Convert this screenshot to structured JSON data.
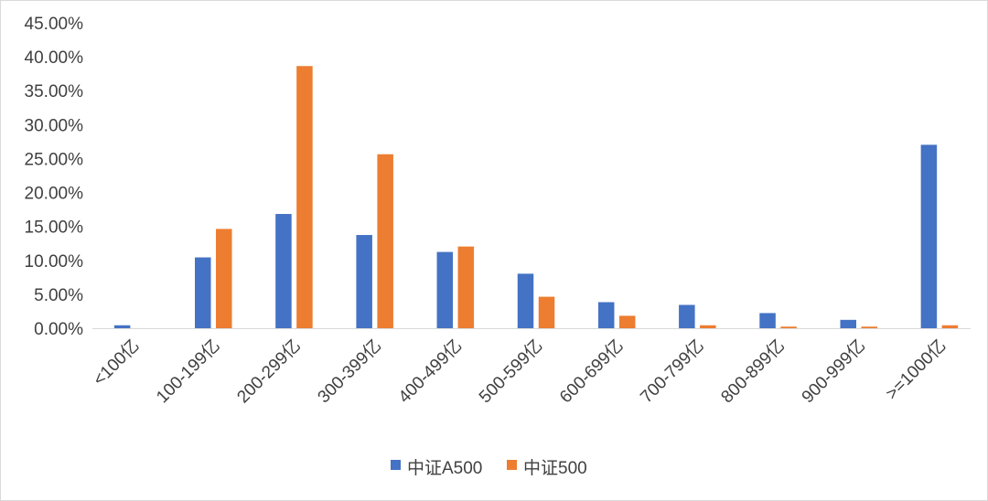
{
  "chart_data": {
    "type": "bar",
    "title": "",
    "xlabel": "",
    "ylabel": "",
    "ylim": [
      0,
      0.45
    ],
    "yticks": [
      "0.00%",
      "5.00%",
      "10.00%",
      "15.00%",
      "20.00%",
      "25.00%",
      "30.00%",
      "35.00%",
      "40.00%",
      "45.00%"
    ],
    "grid": false,
    "legend_position": "bottom",
    "categories": [
      "<100亿",
      "100-199亿",
      "200-299亿",
      "300-399亿",
      "400-499亿",
      "500-599亿",
      "600-699亿",
      "700-799亿",
      "800-899亿",
      "900-999亿",
      ">=1000亿"
    ],
    "series": [
      {
        "name": "中证A500",
        "color": "#4472c4",
        "values": [
          0.004,
          0.104,
          0.168,
          0.137,
          0.112,
          0.08,
          0.038,
          0.034,
          0.022,
          0.012,
          0.27
        ]
      },
      {
        "name": "中证500",
        "color": "#ed7d31",
        "values": [
          0.0,
          0.146,
          0.386,
          0.256,
          0.12,
          0.046,
          0.018,
          0.004,
          0.002,
          0.002,
          0.004
        ]
      }
    ]
  }
}
